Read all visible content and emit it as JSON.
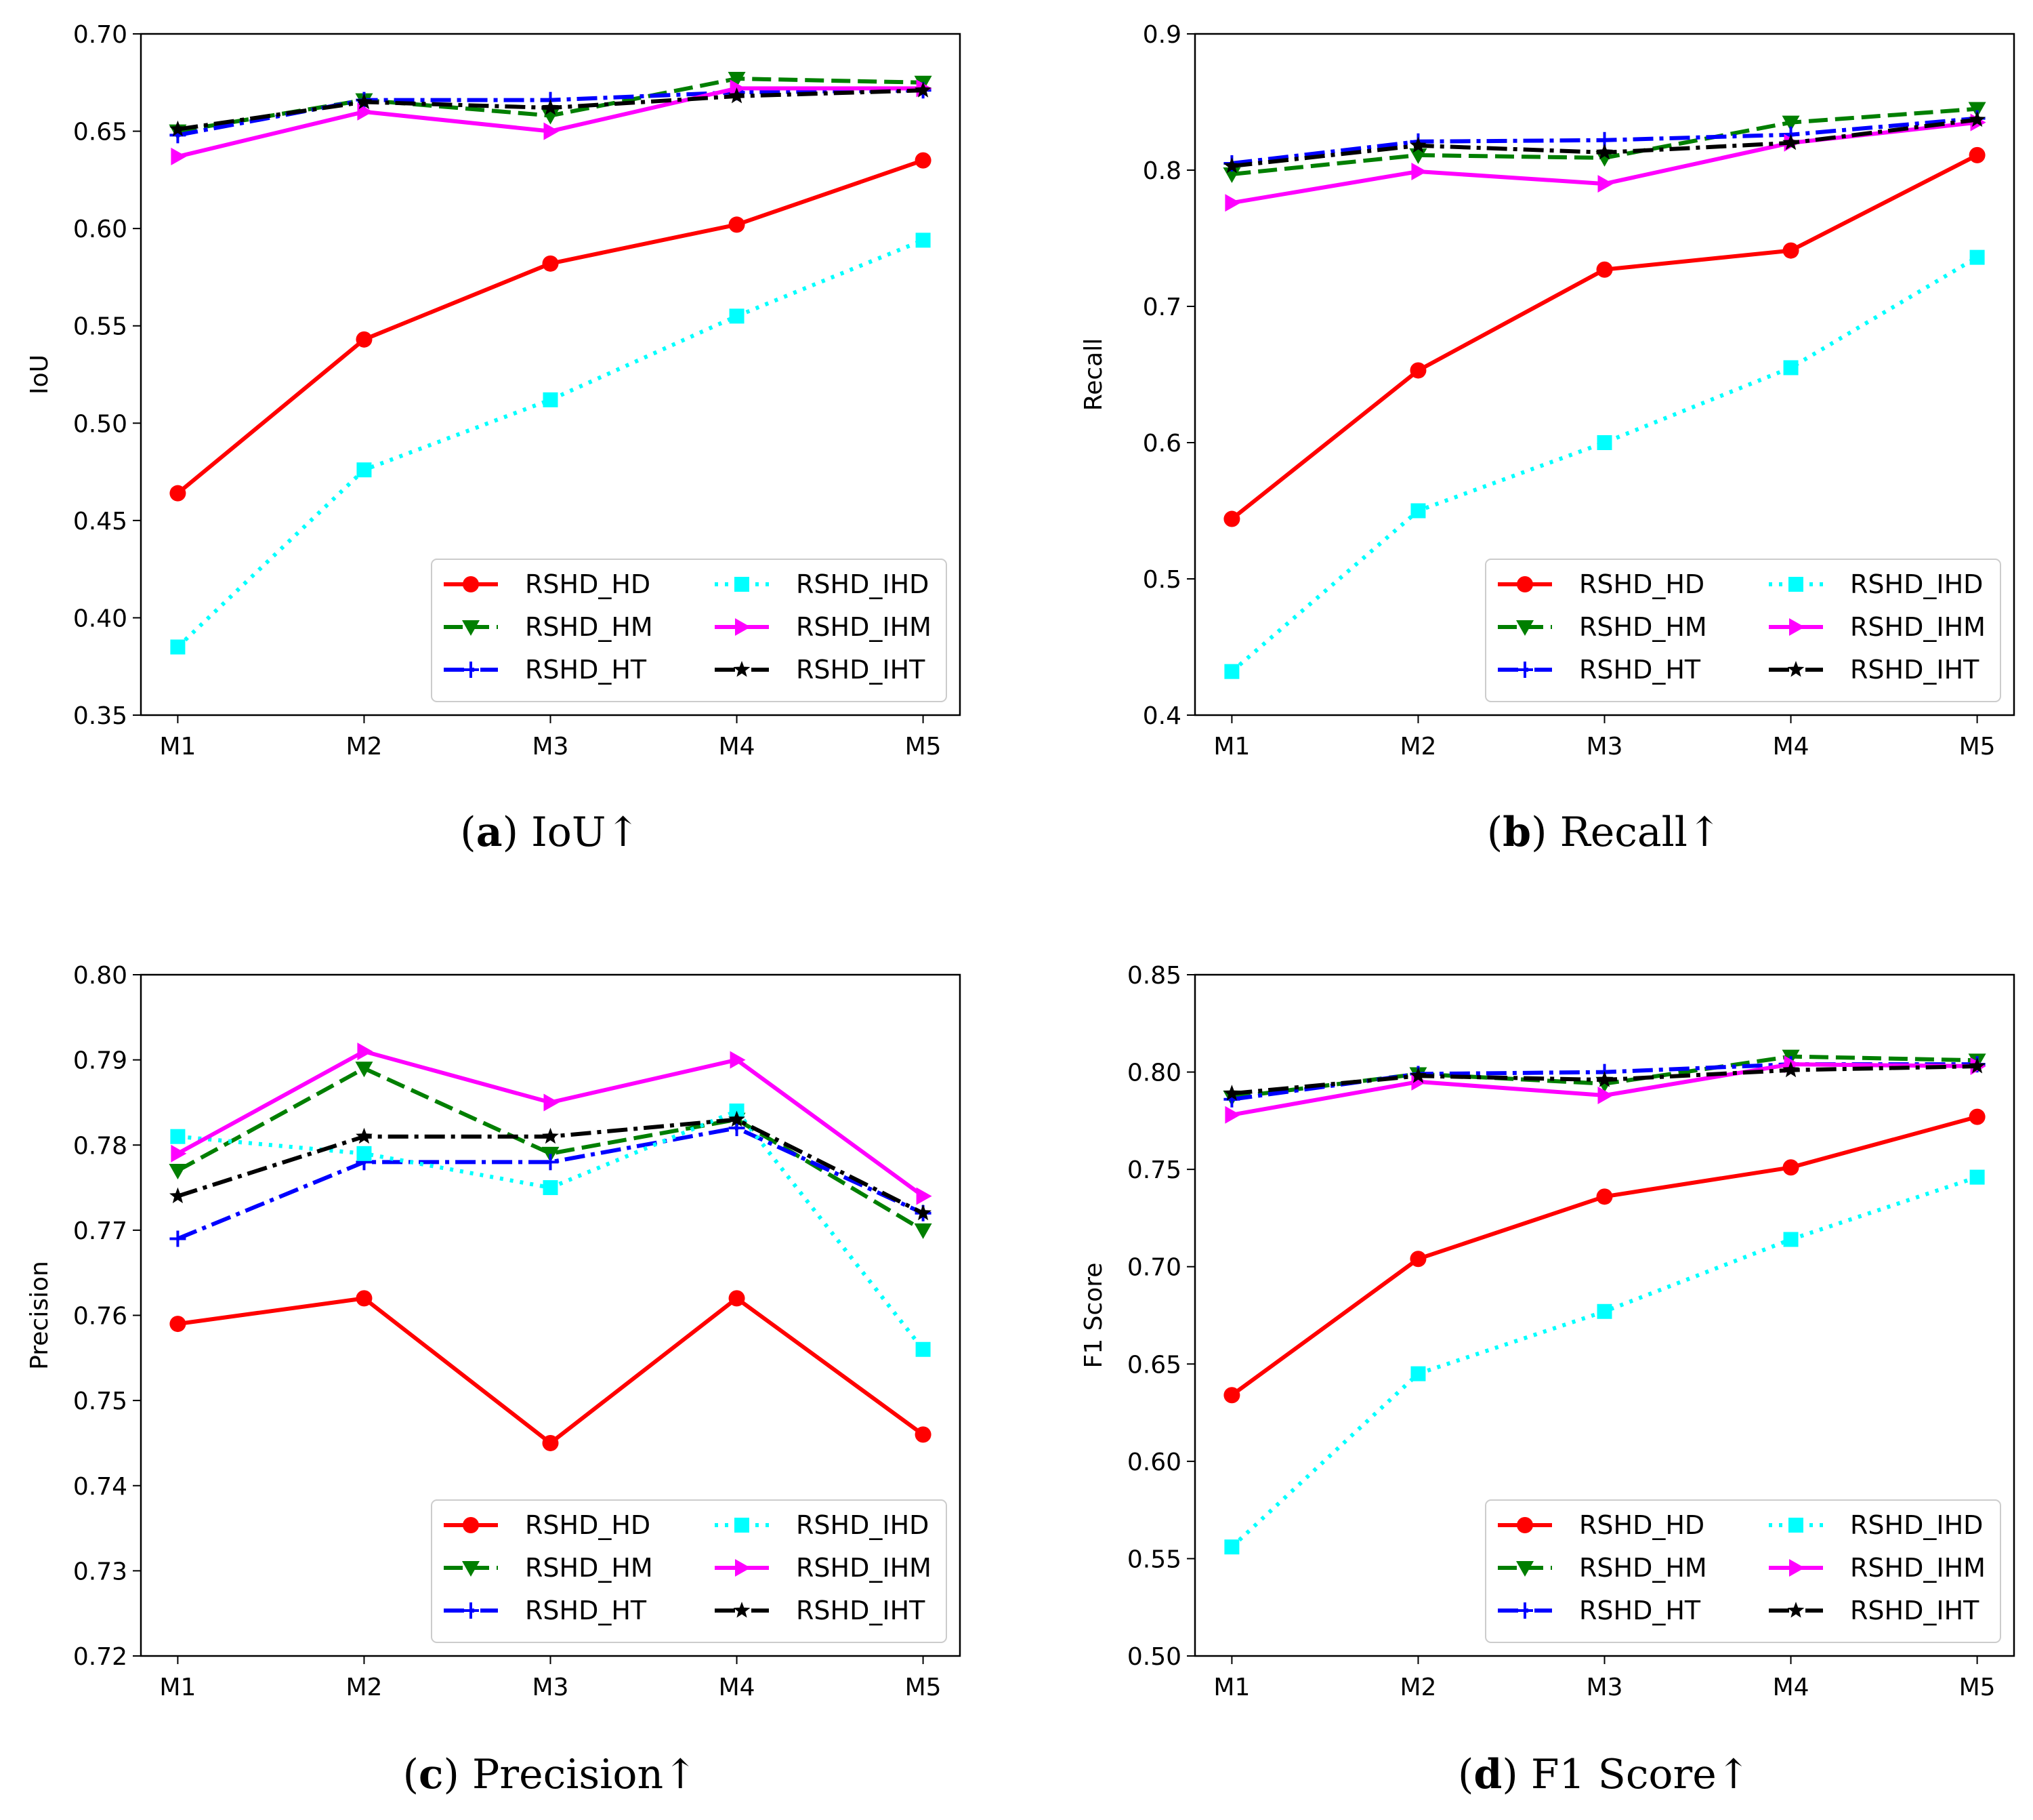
{
  "chart_data": [
    {
      "type": "line",
      "panel_letter": "a",
      "caption": "IoU↑",
      "ylabel": "IoU",
      "xlabel": "",
      "categories": [
        "M1",
        "M2",
        "M3",
        "M4",
        "M5"
      ],
      "ylim": [
        0.35,
        0.7
      ],
      "yticks": [
        0.35,
        0.4,
        0.45,
        0.5,
        0.55,
        0.6,
        0.65,
        0.7
      ],
      "ytick_labels": [
        "0.35",
        "0.40",
        "0.45",
        "0.50",
        "0.55",
        "0.60",
        "0.65",
        "0.70"
      ],
      "legend_position": "lower-right",
      "series": [
        {
          "name": "RSHD_HD",
          "values": [
            0.464,
            0.543,
            0.582,
            0.602,
            0.635
          ]
        },
        {
          "name": "RSHD_HM",
          "values": [
            0.65,
            0.666,
            0.658,
            0.677,
            0.675
          ]
        },
        {
          "name": "RSHD_HT",
          "values": [
            0.648,
            0.666,
            0.666,
            0.67,
            0.671
          ]
        },
        {
          "name": "RSHD_IHD",
          "values": [
            0.385,
            0.476,
            0.512,
            0.555,
            0.594
          ]
        },
        {
          "name": "RSHD_IHM",
          "values": [
            0.637,
            0.66,
            0.65,
            0.672,
            0.672
          ]
        },
        {
          "name": "RSHD_IHT",
          "values": [
            0.651,
            0.665,
            0.662,
            0.668,
            0.671
          ]
        }
      ]
    },
    {
      "type": "line",
      "panel_letter": "b",
      "caption": "Recall↑",
      "ylabel": "Recall",
      "xlabel": "",
      "categories": [
        "M1",
        "M2",
        "M3",
        "M4",
        "M5"
      ],
      "ylim": [
        0.4,
        0.9
      ],
      "yticks": [
        0.4,
        0.5,
        0.6,
        0.7,
        0.8,
        0.9
      ],
      "ytick_labels": [
        "0.4",
        "0.5",
        "0.6",
        "0.7",
        "0.8",
        "0.9"
      ],
      "legend_position": "lower-right",
      "series": [
        {
          "name": "RSHD_HD",
          "values": [
            0.544,
            0.653,
            0.727,
            0.741,
            0.811
          ]
        },
        {
          "name": "RSHD_HM",
          "values": [
            0.797,
            0.811,
            0.809,
            0.835,
            0.845
          ]
        },
        {
          "name": "RSHD_HT",
          "values": [
            0.805,
            0.821,
            0.822,
            0.826,
            0.838
          ]
        },
        {
          "name": "RSHD_IHD",
          "values": [
            0.432,
            0.55,
            0.6,
            0.655,
            0.736
          ]
        },
        {
          "name": "RSHD_IHM",
          "values": [
            0.776,
            0.799,
            0.79,
            0.82,
            0.835
          ]
        },
        {
          "name": "RSHD_IHT",
          "values": [
            0.803,
            0.818,
            0.813,
            0.82,
            0.837
          ]
        }
      ]
    },
    {
      "type": "line",
      "panel_letter": "c",
      "caption": "Precision↑",
      "ylabel": "Precision",
      "xlabel": "",
      "categories": [
        "M1",
        "M2",
        "M3",
        "M4",
        "M5"
      ],
      "ylim": [
        0.72,
        0.8
      ],
      "yticks": [
        0.72,
        0.73,
        0.74,
        0.75,
        0.76,
        0.77,
        0.78,
        0.79,
        0.8
      ],
      "ytick_labels": [
        "0.72",
        "0.73",
        "0.74",
        "0.75",
        "0.76",
        "0.77",
        "0.78",
        "0.79",
        "0.80"
      ],
      "legend_position": "lower-right",
      "series": [
        {
          "name": "RSHD_HD",
          "values": [
            0.759,
            0.762,
            0.745,
            0.762,
            0.746
          ]
        },
        {
          "name": "RSHD_HM",
          "values": [
            0.777,
            0.789,
            0.779,
            0.783,
            0.77
          ]
        },
        {
          "name": "RSHD_HT",
          "values": [
            0.769,
            0.778,
            0.778,
            0.782,
            0.772
          ]
        },
        {
          "name": "RSHD_IHD",
          "values": [
            0.781,
            0.779,
            0.775,
            0.784,
            0.756
          ]
        },
        {
          "name": "RSHD_IHM",
          "values": [
            0.779,
            0.791,
            0.785,
            0.79,
            0.774
          ]
        },
        {
          "name": "RSHD_IHT",
          "values": [
            0.774,
            0.781,
            0.781,
            0.783,
            0.772
          ]
        }
      ]
    },
    {
      "type": "line",
      "panel_letter": "d",
      "caption": "F1 Score↑",
      "ylabel": "F1 Score",
      "xlabel": "",
      "categories": [
        "M1",
        "M2",
        "M3",
        "M4",
        "M5"
      ],
      "ylim": [
        0.5,
        0.85
      ],
      "yticks": [
        0.5,
        0.55,
        0.6,
        0.65,
        0.7,
        0.75,
        0.8,
        0.85
      ],
      "ytick_labels": [
        "0.50",
        "0.55",
        "0.60",
        "0.65",
        "0.70",
        "0.75",
        "0.80",
        "0.85"
      ],
      "legend_position": "lower-right",
      "series": [
        {
          "name": "RSHD_HD",
          "values": [
            0.634,
            0.704,
            0.736,
            0.751,
            0.777
          ]
        },
        {
          "name": "RSHD_HM",
          "values": [
            0.787,
            0.799,
            0.794,
            0.808,
            0.806
          ]
        },
        {
          "name": "RSHD_HT",
          "values": [
            0.786,
            0.799,
            0.8,
            0.804,
            0.804
          ]
        },
        {
          "name": "RSHD_IHD",
          "values": [
            0.556,
            0.645,
            0.677,
            0.714,
            0.746
          ]
        },
        {
          "name": "RSHD_IHM",
          "values": [
            0.778,
            0.795,
            0.788,
            0.804,
            0.803
          ]
        },
        {
          "name": "RSHD_IHT",
          "values": [
            0.789,
            0.798,
            0.796,
            0.801,
            0.803
          ]
        }
      ]
    }
  ],
  "series_styles": {
    "RSHD_HD": {
      "color": "#ff0000",
      "dash": "solid",
      "marker": "circle"
    },
    "RSHD_HM": {
      "color": "#007f00",
      "dash": "dashed",
      "marker": "triangle-down"
    },
    "RSHD_HT": {
      "color": "#0000ff",
      "dash": "dashdot",
      "marker": "plus"
    },
    "RSHD_IHD": {
      "color": "#00ffff",
      "dash": "dotted",
      "marker": "square"
    },
    "RSHD_IHM": {
      "color": "#ff00ff",
      "dash": "solid",
      "marker": "triangle-right"
    },
    "RSHD_IHT": {
      "color": "#000000",
      "dash": "dashdot",
      "marker": "star"
    }
  }
}
